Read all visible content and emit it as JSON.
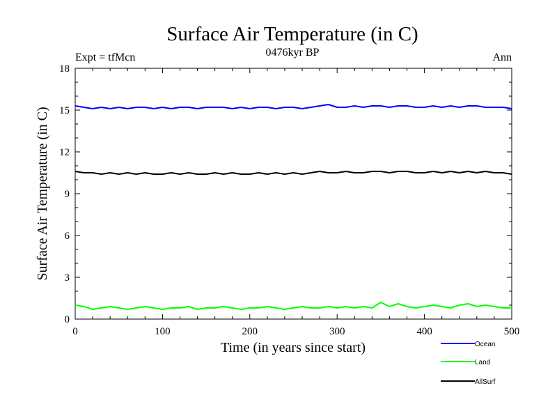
{
  "chart_data": {
    "type": "line",
    "title": "Surface Air Temperature (in C)",
    "subtitle": "0476kyr BP",
    "left_label": "Expt = tfMcn",
    "right_label": "Ann",
    "xlabel": "Time (in years since start)",
    "ylabel": "Surface Air Temperature (in C)",
    "xlim": [
      0,
      500
    ],
    "ylim": [
      0,
      18
    ],
    "xticks": [
      0,
      100,
      200,
      300,
      400,
      500
    ],
    "yticks": [
      0,
      3,
      6,
      9,
      12,
      15,
      18
    ],
    "x": [
      0,
      10,
      20,
      30,
      40,
      50,
      60,
      70,
      80,
      90,
      100,
      110,
      120,
      130,
      140,
      150,
      160,
      170,
      180,
      190,
      200,
      210,
      220,
      230,
      240,
      250,
      260,
      270,
      280,
      290,
      300,
      310,
      320,
      330,
      340,
      350,
      360,
      370,
      380,
      390,
      400,
      410,
      420,
      430,
      440,
      450,
      460,
      470,
      480,
      490,
      500
    ],
    "legend_position": "bottom-right, below plot",
    "series": [
      {
        "name": "Ocean",
        "color": "#0000ff",
        "values": [
          15.3,
          15.2,
          15.1,
          15.2,
          15.1,
          15.2,
          15.1,
          15.2,
          15.2,
          15.1,
          15.2,
          15.1,
          15.2,
          15.2,
          15.1,
          15.2,
          15.2,
          15.2,
          15.1,
          15.2,
          15.1,
          15.2,
          15.2,
          15.1,
          15.2,
          15.2,
          15.1,
          15.2,
          15.3,
          15.4,
          15.2,
          15.2,
          15.3,
          15.2,
          15.3,
          15.3,
          15.2,
          15.3,
          15.3,
          15.2,
          15.2,
          15.3,
          15.2,
          15.3,
          15.2,
          15.3,
          15.3,
          15.2,
          15.2,
          15.2,
          15.1
        ]
      },
      {
        "name": "Land",
        "color": "#00ff00",
        "values": [
          1.0,
          0.9,
          0.7,
          0.8,
          0.9,
          0.8,
          0.7,
          0.8,
          0.9,
          0.8,
          0.7,
          0.8,
          0.8,
          0.9,
          0.7,
          0.8,
          0.8,
          0.9,
          0.8,
          0.7,
          0.8,
          0.8,
          0.9,
          0.8,
          0.7,
          0.8,
          0.9,
          0.8,
          0.8,
          0.9,
          0.8,
          0.9,
          0.8,
          0.9,
          0.8,
          1.2,
          0.9,
          1.1,
          0.9,
          0.8,
          0.9,
          1.0,
          0.9,
          0.8,
          1.0,
          1.1,
          0.9,
          1.0,
          0.9,
          0.8,
          0.8
        ]
      },
      {
        "name": "AllSurf",
        "color": "#000000",
        "values": [
          10.6,
          10.5,
          10.5,
          10.4,
          10.5,
          10.4,
          10.5,
          10.4,
          10.5,
          10.4,
          10.4,
          10.5,
          10.4,
          10.5,
          10.4,
          10.4,
          10.5,
          10.4,
          10.5,
          10.4,
          10.4,
          10.5,
          10.4,
          10.5,
          10.4,
          10.5,
          10.4,
          10.5,
          10.6,
          10.5,
          10.5,
          10.6,
          10.5,
          10.5,
          10.6,
          10.6,
          10.5,
          10.6,
          10.6,
          10.5,
          10.5,
          10.6,
          10.5,
          10.6,
          10.5,
          10.6,
          10.5,
          10.6,
          10.5,
          10.5,
          10.4
        ]
      }
    ]
  }
}
